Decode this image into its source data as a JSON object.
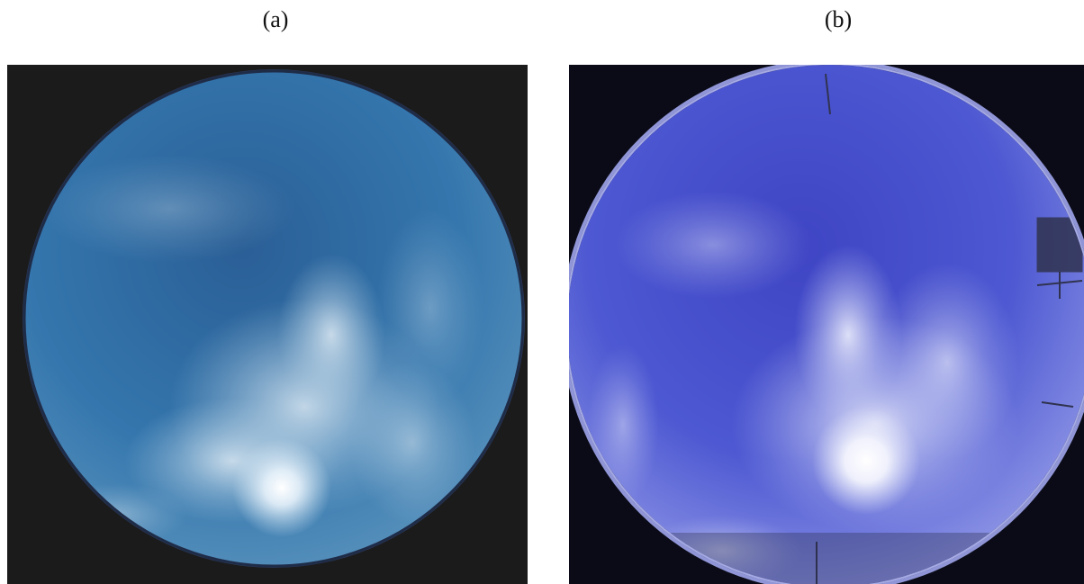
{
  "panels": [
    {
      "label": "(a)",
      "colors": {
        "sky": "#2f6fa8",
        "sky_light": "#5b9cc7",
        "cloud": "#e6eef5",
        "background": "#1b1b1b"
      }
    },
    {
      "label": "(b)",
      "colors": {
        "sky": "#4a55d0",
        "sky_light": "#7d86e6",
        "cloud": "#eef0fb",
        "background": "#0b0b18"
      }
    }
  ]
}
